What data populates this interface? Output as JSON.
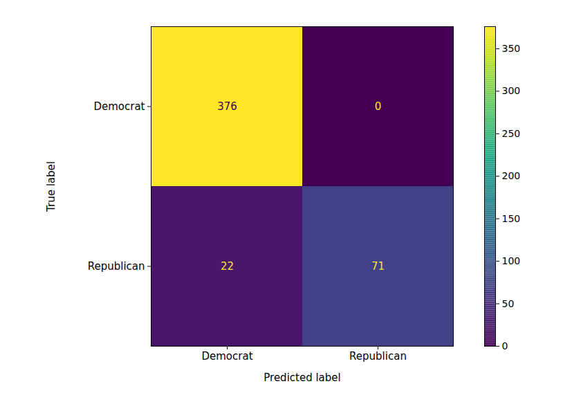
{
  "chart_data": {
    "type": "heatmap",
    "xlabel": "Predicted label",
    "ylabel": "True label",
    "x_categories": [
      "Democrat",
      "Republican"
    ],
    "y_categories": [
      "Democrat",
      "Republican"
    ],
    "cells": [
      [
        376,
        0
      ],
      [
        22,
        71
      ]
    ],
    "color": "viridis",
    "data_labels": true,
    "colorbar": {
      "range": [
        0,
        376
      ],
      "ticks": [
        0,
        50,
        100,
        150,
        200,
        250,
        300,
        350
      ]
    }
  }
}
